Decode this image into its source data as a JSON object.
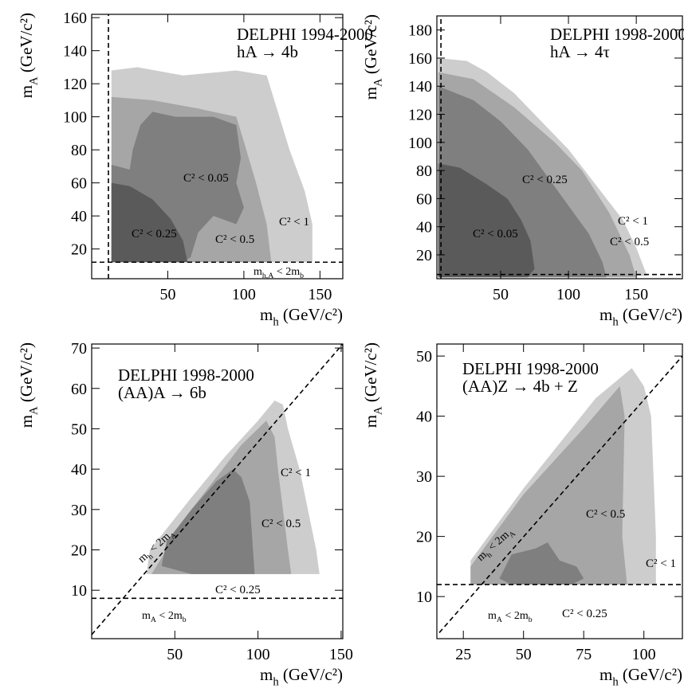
{
  "chart_data": [
    {
      "type": "contour",
      "title": [
        "DELPHI 1994-2000",
        "hA → 4b"
      ],
      "xlabel": [
        "m",
        "h",
        " (GeV/c²)"
      ],
      "ylabel": [
        "m",
        "A",
        " (GeV/c²)"
      ],
      "xlim": [
        0,
        165
      ],
      "ylim": [
        2,
        162
      ],
      "xticks": [
        50,
        100,
        150
      ],
      "yticks": [
        20,
        40,
        60,
        80,
        100,
        120,
        140,
        160
      ],
      "series": [
        {
          "name": "C² < 1",
          "color": "#cdcdcd",
          "x": [
            13,
            13,
            30,
            60,
            95,
            115,
            120,
            130,
            140,
            145,
            145
          ],
          "y": [
            12,
            128,
            130,
            125,
            128,
            125,
            110,
            80,
            55,
            35,
            12
          ]
        },
        {
          "name": "C² < 0.5",
          "color": "#a6a6a6",
          "x": [
            13,
            13,
            40,
            70,
            95,
            100,
            108,
            115,
            118
          ],
          "y": [
            12,
            112,
            110,
            105,
            100,
            85,
            60,
            35,
            12
          ]
        },
        {
          "name": "C² < 0.25",
          "color": "#7f7f7f",
          "x": [
            13,
            13,
            25,
            27,
            32,
            40,
            55,
            80,
            95,
            98,
            95,
            100,
            95,
            80,
            70,
            65,
            60
          ],
          "y": [
            12,
            71,
            68,
            80,
            95,
            103,
            100,
            100,
            95,
            75,
            60,
            45,
            35,
            40,
            30,
            15,
            12
          ]
        },
        {
          "name": "C² < 0.05",
          "color": "#5a5a5a",
          "x": [
            13,
            13,
            25,
            40,
            52,
            60,
            63
          ],
          "y": [
            12,
            60,
            58,
            50,
            38,
            25,
            12
          ]
        }
      ],
      "lines": [
        {
          "x": [
            11,
            11
          ],
          "y": [
            2,
            162
          ]
        },
        {
          "x": [
            0,
            165
          ],
          "y": [
            12,
            12
          ]
        }
      ],
      "annotations": [
        [
          "m",
          "h,A",
          " < 2m",
          "b"
        ]
      ]
    },
    {
      "type": "contour",
      "title": [
        "DELPHI 1998-2000",
        "hA → 4τ"
      ],
      "xlabel": [
        "m",
        "h",
        " (GeV/c²)"
      ],
      "ylabel": [
        "m",
        "A",
        " (GeV/c²)"
      ],
      "xlim": [
        3,
        184
      ],
      "ylim": [
        3,
        190
      ],
      "xticks": [
        50,
        100,
        150
      ],
      "yticks": [
        20,
        40,
        60,
        80,
        100,
        120,
        140,
        160,
        180
      ],
      "series": [
        {
          "name": "C² < 1",
          "color": "#cdcdcd",
          "x": [
            4,
            4,
            25,
            40,
            60,
            80,
            100,
            120,
            140,
            150,
            158
          ],
          "y": [
            4,
            160,
            158,
            150,
            135,
            115,
            95,
            70,
            45,
            25,
            5
          ]
        },
        {
          "name": "C² < 0.5",
          "color": "#a6a6a6",
          "x": [
            4,
            4,
            30,
            60,
            90,
            110,
            130,
            145,
            150
          ],
          "y": [
            4,
            150,
            145,
            125,
            100,
            80,
            50,
            20,
            4
          ]
        },
        {
          "name": "C² < 0.25",
          "color": "#7f7f7f",
          "x": [
            4,
            4,
            30,
            50,
            70,
            85,
            100,
            115,
            125,
            128
          ],
          "y": [
            4,
            140,
            130,
            115,
            95,
            75,
            55,
            35,
            15,
            4
          ]
        },
        {
          "name": "C² < 0.05",
          "color": "#5a5a5a",
          "x": [
            4,
            4,
            20,
            40,
            55,
            65,
            72,
            75,
            70
          ],
          "y": [
            4,
            85,
            82,
            70,
            60,
            45,
            30,
            10,
            4
          ]
        }
      ],
      "lines": [
        {
          "x": [
            6,
            6
          ],
          "y": [
            3,
            190
          ]
        },
        {
          "x": [
            3,
            184
          ],
          "y": [
            6,
            6
          ]
        }
      ],
      "annotations": []
    },
    {
      "type": "contour",
      "title": [
        "DELPHI 1998-2000",
        "(AA)A → 6b"
      ],
      "xlabel": [
        "m",
        "h",
        " (GeV/c²)"
      ],
      "ylabel": [
        "m",
        "A",
        " (GeV/c²)"
      ],
      "xlim": [
        0,
        151
      ],
      "ylim": [
        -2,
        71
      ],
      "xticks": [
        50,
        100,
        150
      ],
      "yticks": [
        10,
        20,
        30,
        40,
        50,
        60,
        70
      ],
      "series": [
        {
          "name": "C² < 1",
          "color": "#cdcdcd",
          "x": [
            33,
            35,
            60,
            80,
            100,
            110,
            115,
            118,
            125,
            130,
            135,
            137
          ],
          "y": [
            14,
            20,
            33,
            43,
            52,
            57,
            56,
            50,
            40,
            30,
            20,
            14
          ]
        },
        {
          "name": "C² < 0.5",
          "color": "#a6a6a6",
          "x": [
            36,
            60,
            90,
            105,
            110,
            112,
            115,
            118,
            120
          ],
          "y": [
            14,
            30,
            46,
            52,
            48,
            40,
            30,
            20,
            14
          ]
        },
        {
          "name": "C² < 0.25",
          "color": "#7f7f7f",
          "x": [
            42,
            45,
            60,
            75,
            85,
            90,
            95,
            97,
            98,
            60
          ],
          "y": [
            16,
            22,
            30,
            37,
            40,
            38,
            32,
            20,
            14,
            14
          ]
        }
      ],
      "lines": [
        {
          "x": [
            0,
            151
          ],
          "y": [
            -1,
            71
          ]
        },
        {
          "x": [
            0,
            151
          ],
          "y": [
            8,
            8
          ]
        }
      ],
      "annotations": [
        [
          "m",
          "h",
          " < 2m",
          "A"
        ],
        [
          "m",
          "A",
          " < 2m",
          "b"
        ]
      ]
    },
    {
      "type": "contour",
      "title": [
        "DELPHI 1998-2000",
        "(AA)Z → 4b + Z"
      ],
      "xlabel": [
        "m",
        "h",
        " (GeV/c²)"
      ],
      "ylabel": [
        "m",
        "A",
        " (GeV/c²)"
      ],
      "xlim": [
        14,
        116
      ],
      "ylim": [
        3,
        52
      ],
      "xticks": [
        25,
        50,
        75,
        100
      ],
      "yticks": [
        10,
        20,
        30,
        40,
        50
      ],
      "series": [
        {
          "name": "C² < 1",
          "color": "#cdcdcd",
          "x": [
            28,
            28,
            50,
            80,
            95,
            100,
            103,
            105,
            105
          ],
          "y": [
            12,
            16,
            28,
            43,
            48,
            45,
            40,
            20,
            12
          ]
        },
        {
          "name": "C² < 0.5",
          "color": "#a6a6a6",
          "x": [
            28,
            28,
            50,
            75,
            90,
            92,
            91,
            93
          ],
          "y": [
            12,
            15,
            27,
            38,
            45,
            40,
            20,
            12
          ]
        },
        {
          "name": "C² < 0.25",
          "color": "#7f7f7f",
          "x": [
            40,
            45,
            55,
            60,
            65,
            72,
            75,
            70,
            45
          ],
          "y": [
            13,
            17,
            18,
            19,
            16,
            15,
            13,
            12,
            12
          ]
        }
      ],
      "lines": [
        {
          "x": [
            15,
            116
          ],
          "y": [
            4,
            50
          ]
        },
        {
          "x": [
            14,
            116
          ],
          "y": [
            12,
            12
          ]
        }
      ],
      "annotations": [
        [
          "m",
          "h",
          " < 2m",
          "A"
        ],
        [
          "m",
          "A",
          " < 2m",
          "b"
        ]
      ]
    }
  ]
}
